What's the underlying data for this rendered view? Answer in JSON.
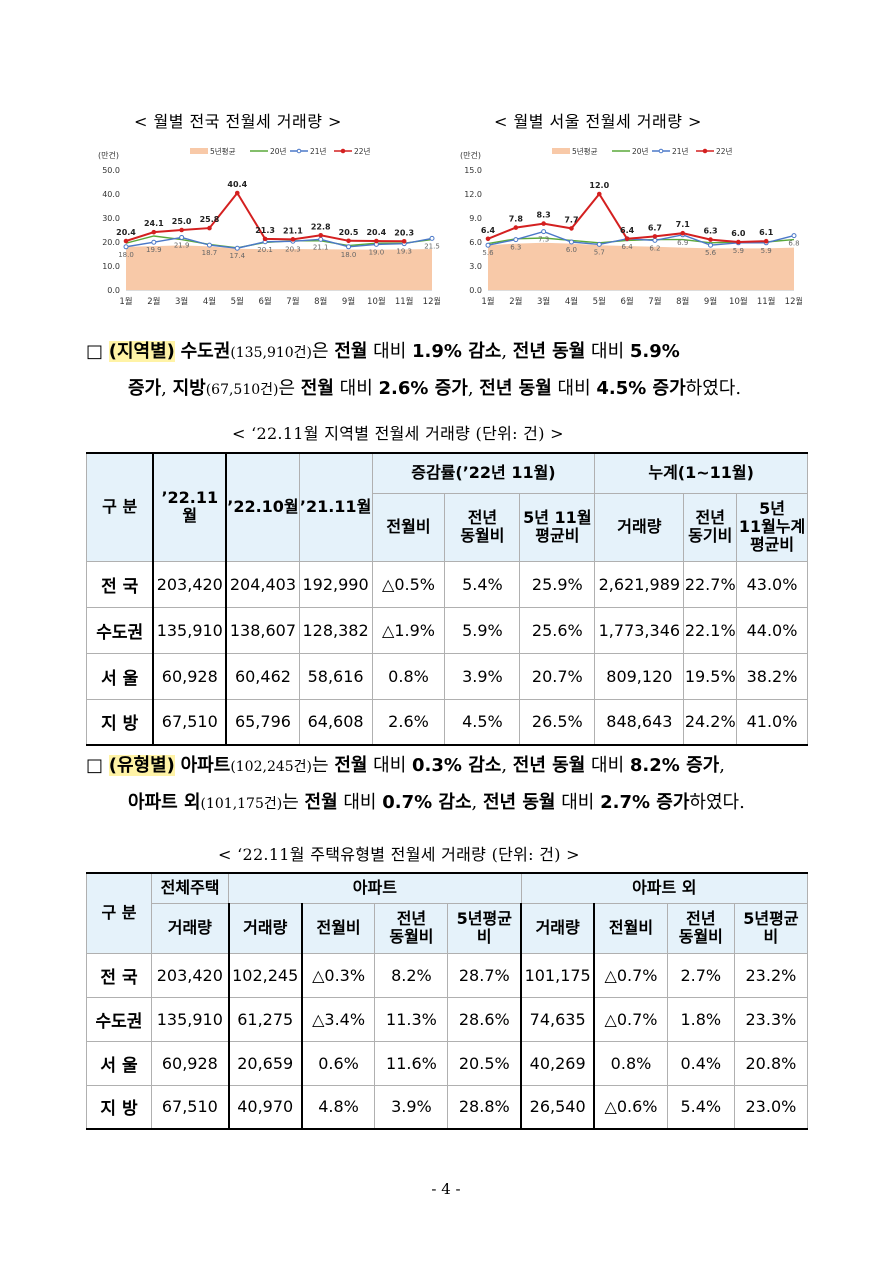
{
  "charts": [
    {
      "title": "< 월별 전국 전월세 거래량 >",
      "chart_data": {
        "type": "line",
        "unit": "(만건)",
        "categories": [
          "1월",
          "2월",
          "3월",
          "4월",
          "5월",
          "6월",
          "7월",
          "8월",
          "9월",
          "10월",
          "11월",
          "12월"
        ],
        "ylim": [
          0,
          50
        ],
        "yticks": [
          "0.0",
          "10.0",
          "20.0",
          "30.0",
          "40.0",
          "50.0"
        ],
        "series": [
          {
            "name": "5년평균",
            "type": "area",
            "color": "#f8c9a8",
            "values": [
              18.0,
              18.3,
              18.6,
              18.2,
              17.2,
              17.0,
              17.1,
              17.0,
              16.9,
              16.8,
              16.9,
              17.1
            ]
          },
          {
            "name": "20년",
            "color": "#5aa83a",
            "values": [
              19.5,
              22.5,
              21.0,
              19.0,
              17.6,
              19.8,
              20.5,
              20.5,
              18.5,
              19.5,
              19.5,
              21.0
            ]
          },
          {
            "name": "21년",
            "color": "#4b78c8",
            "values": [
              18.0,
              19.9,
              21.9,
              18.7,
              17.4,
              20.1,
              20.3,
              21.1,
              18.0,
              19.0,
              19.3,
              21.5
            ]
          },
          {
            "name": "22년",
            "color": "#d42020",
            "values": [
              20.4,
              24.1,
              25.0,
              25.8,
              40.4,
              21.3,
              21.1,
              22.8,
              20.5,
              20.4,
              20.3,
              null
            ]
          }
        ],
        "labels_22": [
          "20.4",
          "24.1",
          "25.0",
          "25.8",
          "40.4",
          "21.3",
          "21.1",
          "22.8",
          "20.5",
          "20.4",
          "20.3"
        ],
        "labels_21": [
          "18.0",
          "19.9",
          "21.9",
          "18.7",
          "17.4",
          "20.1",
          "20.3",
          "21.1",
          "18.0",
          "19.0",
          "19.3",
          "21.5"
        ]
      }
    },
    {
      "title": "< 월별 서울 전월세 거래량 >",
      "chart_data": {
        "type": "line",
        "unit": "(만건)",
        "categories": [
          "1월",
          "2월",
          "3월",
          "4월",
          "5월",
          "6월",
          "7월",
          "8월",
          "9월",
          "10월",
          "11월",
          "12월"
        ],
        "ylim": [
          0,
          15
        ],
        "yticks": [
          "0.0",
          "3.0",
          "6.0",
          "9.0",
          "12.0",
          "15.0"
        ],
        "series": [
          {
            "name": "5년평균",
            "type": "area",
            "color": "#f8c9a8",
            "values": [
              5.6,
              5.8,
              5.9,
              5.8,
              5.6,
              5.5,
              5.4,
              5.3,
              5.2,
              5.2,
              5.2,
              5.3
            ]
          },
          {
            "name": "20년",
            "color": "#5aa83a",
            "values": [
              5.8,
              6.4,
              6.5,
              6.2,
              5.9,
              6.2,
              6.3,
              6.3,
              5.9,
              6.0,
              6.0,
              6.3
            ]
          },
          {
            "name": "21년",
            "color": "#4b78c8",
            "values": [
              5.6,
              6.3,
              7.3,
              6.0,
              5.7,
              6.4,
              6.2,
              6.9,
              5.6,
              5.9,
              5.9,
              6.8
            ]
          },
          {
            "name": "22년",
            "color": "#d42020",
            "values": [
              6.4,
              7.8,
              8.3,
              7.7,
              12.0,
              6.4,
              6.7,
              7.1,
              6.3,
              6.0,
              6.1,
              null
            ]
          }
        ],
        "labels_22": [
          "6.4",
          "7.8",
          "8.3",
          "7.7",
          "12.0",
          "6.4",
          "6.7",
          "7.1",
          "6.3",
          "6.0",
          "6.1"
        ],
        "labels_21": [
          "5.6",
          "6.3",
          "7.3",
          "6.0",
          "5.7",
          "6.4",
          "6.2",
          "6.9",
          "5.6",
          "5.9",
          "5.9",
          "6.8"
        ]
      }
    }
  ],
  "para1": {
    "box": "□",
    "tag": "(지역별)",
    "s1": "수도권",
    "s2": "(135,910건)",
    "s3": "은 ",
    "s4": "전월",
    "s5": " 대비 ",
    "s6": "1.9% 감소",
    "s7": ", ",
    "s8": "전년 동월",
    "s9": " 대비 ",
    "s10": "5.9%",
    "l2a": "증가",
    "l2b": ", ",
    "l2c": "지방",
    "l2d": "(67,510건)",
    "l2e": "은 ",
    "l2f": "전월",
    "l2g": " 대비 ",
    "l2h": "2.6% 증가",
    "l2i": ", ",
    "l2j": "전년 동월",
    "l2k": " 대비 ",
    "l2l": "4.5% 증가",
    "l2m": "하였다."
  },
  "table1": {
    "caption": "< ‘22.11월 지역별 전월세 거래량 (단위: 건) >",
    "h_gubun": "구 분",
    "h_c1": "’22.11월",
    "h_c2": "’22.10월",
    "h_c3": "’21.11월",
    "h_group1": "증감률(’22년 11월)",
    "h_group2": "누계(1~11월)",
    "h_s1": "전월비",
    "h_s2a": "전년",
    "h_s2b": "동월비",
    "h_s3a": "5년 11월",
    "h_s3b": "평균비",
    "h_s4": "거래량",
    "h_s5a": "전년",
    "h_s5b": "동기비",
    "h_s6a": "5년",
    "h_s6b": "11월누계",
    "h_s6c": "평균비",
    "rows": [
      {
        "name": "전 국",
        "v": [
          "203,420",
          "204,403",
          "192,990",
          "△0.5%",
          "5.4%",
          "25.9%",
          "2,621,989",
          "22.7%",
          "43.0%"
        ]
      },
      {
        "name": "수도권",
        "v": [
          "135,910",
          "138,607",
          "128,382",
          "△1.9%",
          "5.9%",
          "25.6%",
          "1,773,346",
          "22.1%",
          "44.0%"
        ]
      },
      {
        "name": "서 울",
        "v": [
          "60,928",
          "60,462",
          "58,616",
          "0.8%",
          "3.9%",
          "20.7%",
          "809,120",
          "19.5%",
          "38.2%"
        ]
      },
      {
        "name": "지 방",
        "v": [
          "67,510",
          "65,796",
          "64,608",
          "2.6%",
          "4.5%",
          "26.5%",
          "848,643",
          "24.2%",
          "41.0%"
        ]
      }
    ]
  },
  "para2": {
    "box": "□",
    "tag": "(유형별)",
    "s1": "아파트",
    "s2": "(102,245건)",
    "s3": "는 ",
    "s4": "전월",
    "s5": " 대비 ",
    "s6": "0.3% 감소",
    "s7": ", ",
    "s8": "전년 동월",
    "s9": " 대비 ",
    "s10": "8.2% 증가",
    "s11": ",",
    "l2a": "아파트 외",
    "l2b": "(101,175건)",
    "l2c": "는 ",
    "l2d": "전월",
    "l2e": " 대비 ",
    "l2f": "0.7% 감소",
    "l2g": ", ",
    "l2h": "전년 동월",
    "l2i": " 대비 ",
    "l2j": "2.7% 증가",
    "l2k": "하였다."
  },
  "table2": {
    "caption": "< ‘22.11월 주택유형별 전월세 거래량 (단위: 건) >",
    "h_gubun": "구 분",
    "h_all": "전체주택",
    "h_apt": "아파트",
    "h_non": "아파트 외",
    "h_vol": "거래량",
    "h_mom": "전월비",
    "h_yoy_a": "전년",
    "h_yoy_b": "동월비",
    "h_avg_a": "5년평균",
    "h_avg_b": "비",
    "rows": [
      {
        "name": "전 국",
        "v": [
          "203,420",
          "102,245",
          "△0.3%",
          "8.2%",
          "28.7%",
          "101,175",
          "△0.7%",
          "2.7%",
          "23.2%"
        ]
      },
      {
        "name": "수도권",
        "v": [
          "135,910",
          "61,275",
          "△3.4%",
          "11.3%",
          "28.6%",
          "74,635",
          "△0.7%",
          "1.8%",
          "23.3%"
        ]
      },
      {
        "name": "서 울",
        "v": [
          "60,928",
          "20,659",
          "0.6%",
          "11.6%",
          "20.5%",
          "40,269",
          "0.8%",
          "0.4%",
          "20.8%"
        ]
      },
      {
        "name": "지 방",
        "v": [
          "67,510",
          "40,970",
          "4.8%",
          "3.9%",
          "28.8%",
          "26,540",
          "△0.6%",
          "5.4%",
          "23.0%"
        ]
      }
    ]
  },
  "page_number": "- 4 -"
}
